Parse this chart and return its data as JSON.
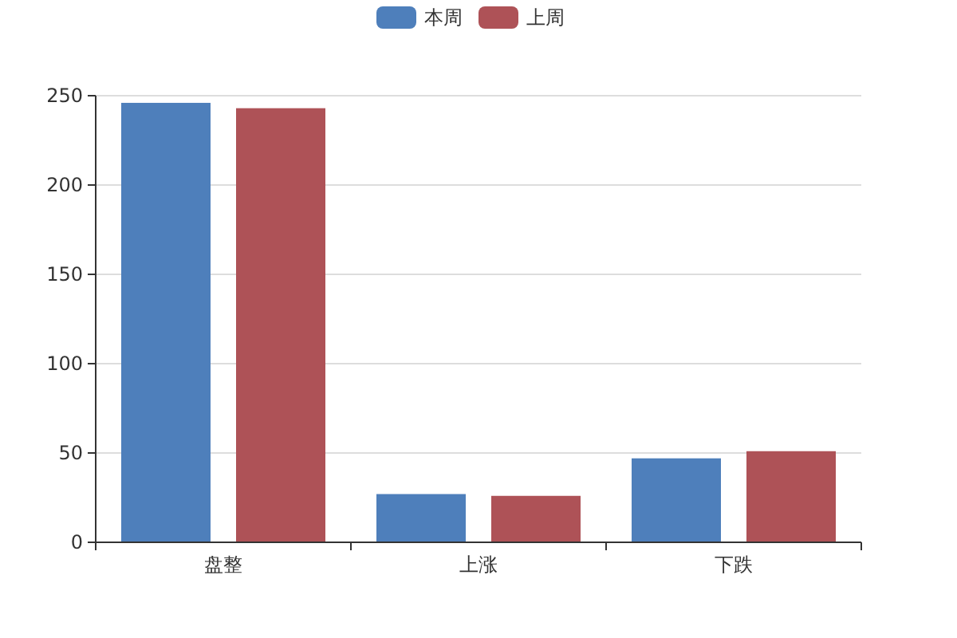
{
  "chart_data": {
    "type": "bar",
    "categories": [
      "盘整",
      "上涨",
      "下跌"
    ],
    "series": [
      {
        "name": "本周",
        "color": "#4e7fbb",
        "values": [
          246,
          27,
          47
        ]
      },
      {
        "name": "上周",
        "color": "#ae5257",
        "values": [
          243,
          26,
          51
        ]
      }
    ],
    "ylim": [
      0,
      250
    ],
    "yticks": [
      0,
      50,
      100,
      150,
      200,
      250
    ],
    "grid": "y",
    "legend": "top"
  }
}
